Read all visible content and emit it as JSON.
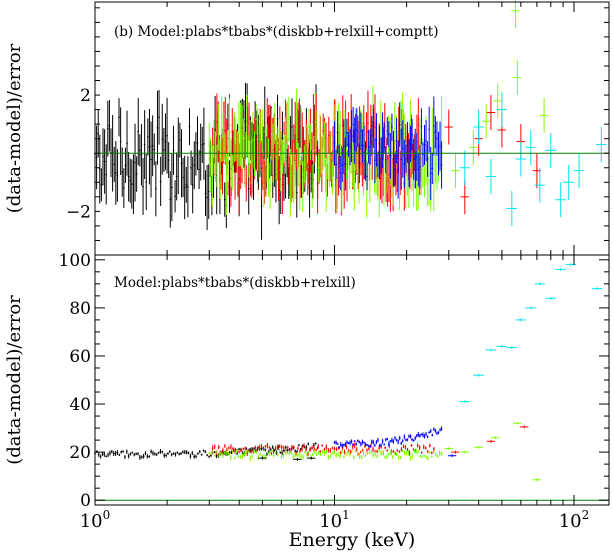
{
  "figure": {
    "xlabel": "Energy (keV)",
    "x_tick_labels": [
      "10^0",
      "10^1",
      "10^2"
    ]
  },
  "colors": {
    "black": "#000000",
    "red": "#ff0000",
    "green": "#7fff00",
    "blue": "#0000ff",
    "cyan": "#00e5ee",
    "model_line": "#008000"
  },
  "chart_data": [
    {
      "type": "scatter",
      "panel": "top",
      "annotation": "(b) Model:plabs*tbabs*(diskbb+relxill+comptt)",
      "xlabel": "",
      "ylabel": "(data-model)/error",
      "xscale": "log",
      "xlim": [
        1,
        140
      ],
      "ylim": [
        -3.5,
        5.2
      ],
      "yticks": [
        -2,
        2
      ],
      "y_tick_labels": [
        "−2",
        "2"
      ],
      "reference_line": 0,
      "series": [
        {
          "color": "black",
          "x_range": [
            1.0,
            8.5
          ],
          "count": 140,
          "mean": -0.2,
          "spread": 1.2,
          "error_bar": 0.9,
          "oscillation": true
        },
        {
          "color": "red",
          "x_range": [
            3.1,
            23.0
          ],
          "count": 150,
          "mean": 0.0,
          "spread": 1.1,
          "error_bar": 0.8
        },
        {
          "color": "green",
          "x_range": [
            3.0,
            28.0
          ],
          "count": 150,
          "mean": 0.0,
          "spread": 1.2,
          "error_bar": 0.8
        },
        {
          "color": "blue",
          "x_range": [
            10.0,
            28.0
          ],
          "count": 70,
          "mean": 0.1,
          "spread": 0.9,
          "error_bar": 0.7
        },
        {
          "color": "red",
          "points": [
            [
              30,
              0.9
            ],
            [
              35,
              -1.5
            ],
            [
              40,
              0.5
            ],
            [
              45,
              1.4
            ],
            [
              50,
              0.8
            ],
            [
              60,
              0.4
            ],
            [
              70,
              -0.6
            ]
          ]
        },
        {
          "color": "green",
          "points": [
            [
              32,
              -0.6
            ],
            [
              38,
              0.2
            ],
            [
              43,
              1.1
            ],
            [
              48,
              1.8
            ],
            [
              58,
              2.6
            ],
            [
              75,
              1.3
            ],
            [
              57,
              4.9
            ]
          ]
        },
        {
          "color": "cyan",
          "points": [
            [
              35,
              -0.5
            ],
            [
              40,
              0.9
            ],
            [
              45,
              -0.8
            ],
            [
              50,
              1.5
            ],
            [
              55,
              -1.9
            ],
            [
              60,
              -0.2
            ],
            [
              66,
              0.2
            ],
            [
              72,
              -1.1
            ],
            [
              80,
              0.1
            ],
            [
              88,
              -1.6
            ],
            [
              95,
              -1.0
            ],
            [
              105,
              -0.6
            ],
            [
              130,
              0.3
            ]
          ]
        }
      ]
    },
    {
      "type": "scatter",
      "panel": "bottom",
      "annotation": "Model:plabs*tbabs*(diskbb+relxill)",
      "xlabel": "Energy (keV)",
      "ylabel": "(data-model)/error",
      "xscale": "log",
      "xlim": [
        1,
        140
      ],
      "ylim": [
        -2,
        102
      ],
      "yticks": [
        0,
        20,
        40,
        60,
        80,
        100
      ],
      "y_tick_labels": [
        "0",
        "20",
        "40",
        "60",
        "80",
        "100"
      ],
      "reference_line": 0,
      "series": [
        {
          "color": "black",
          "x_range": [
            1.0,
            8.5
          ],
          "count": 120,
          "mean": 21.0,
          "spread": 1.4,
          "error_bar": 0.7,
          "trend": [
            19,
            22.5
          ]
        },
        {
          "color": "red",
          "x_range": [
            3.1,
            26.0
          ],
          "count": 110,
          "mean": 21.0,
          "spread": 1.8,
          "error_bar": 0.8
        },
        {
          "color": "green",
          "x_range": [
            3.0,
            28.0
          ],
          "count": 120,
          "mean": 19.0,
          "spread": 1.6,
          "error_bar": 0.8
        },
        {
          "color": "blue",
          "x_range": [
            10.0,
            28.0
          ],
          "count": 70,
          "mean": 25.0,
          "spread": 1.6,
          "error_bar": 0.7,
          "trend": [
            23.5,
            29.5
          ]
        },
        {
          "color": "black",
          "points": [
            [
              5,
              17.5
            ],
            [
              7,
              17.0
            ],
            [
              8,
              17.5
            ]
          ]
        },
        {
          "color": "green",
          "points": [
            [
              30,
              21.5
            ],
            [
              35,
              20.0
            ],
            [
              40,
              22.0
            ],
            [
              47,
              26.0
            ],
            [
              58,
              32.0
            ],
            [
              70,
              8.5
            ]
          ]
        },
        {
          "color": "red",
          "points": [
            [
              32,
              20.0
            ],
            [
              45,
              24.5
            ],
            [
              62,
              30.5
            ]
          ]
        },
        {
          "color": "blue",
          "points": [
            [
              31,
              18.5
            ]
          ]
        },
        {
          "color": "cyan",
          "points": [
            [
              35,
              41.0
            ],
            [
              40,
              52.0
            ],
            [
              45,
              62.5
            ],
            [
              50,
              64.0
            ],
            [
              55,
              63.5
            ],
            [
              60,
              75.0
            ],
            [
              66,
              80.0
            ],
            [
              72,
              90.0
            ],
            [
              80,
              84.0
            ],
            [
              88,
              96.0
            ],
            [
              97,
              98.0
            ],
            [
              125,
              88.0
            ]
          ]
        }
      ]
    }
  ]
}
